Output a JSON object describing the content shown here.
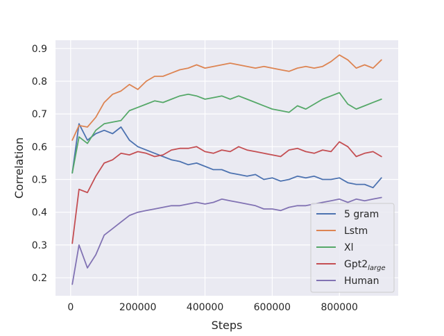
{
  "chart_data": {
    "type": "line",
    "xlabel": "Steps",
    "ylabel": "Correlation",
    "xlim": [
      -45000,
      975000
    ],
    "ylim": [
      0.145,
      0.925
    ],
    "xticks": [
      0,
      200000,
      400000,
      600000,
      800000
    ],
    "xtick_labels": [
      "0",
      "200000",
      "400000",
      "600000",
      "800000"
    ],
    "yticks": [
      0.2,
      0.3,
      0.4,
      0.5,
      0.6,
      0.7,
      0.8,
      0.9
    ],
    "ytick_labels": [
      "0.2",
      "0.3",
      "0.4",
      "0.5",
      "0.6",
      "0.7",
      "0.8",
      "0.9"
    ],
    "grid": true,
    "legend_position": "lower-right",
    "style": {
      "background": "#eaeaf2",
      "grid_color": "#ffffff"
    },
    "series": [
      {
        "name": "5 gram",
        "color": "#4c72b0",
        "x": [
          5000,
          25000,
          50000,
          75000,
          100000,
          125000,
          150000,
          175000,
          200000,
          225000,
          250000,
          275000,
          300000,
          325000,
          350000,
          375000,
          400000,
          425000,
          450000,
          475000,
          500000,
          525000,
          550000,
          575000,
          600000,
          625000,
          650000,
          675000,
          700000,
          725000,
          750000,
          775000,
          800000,
          825000,
          850000,
          875000,
          900000,
          925000
        ],
        "y": [
          0.52,
          0.67,
          0.62,
          0.64,
          0.65,
          0.64,
          0.66,
          0.62,
          0.6,
          0.59,
          0.58,
          0.57,
          0.56,
          0.555,
          0.545,
          0.55,
          0.54,
          0.53,
          0.53,
          0.52,
          0.515,
          0.51,
          0.515,
          0.5,
          0.505,
          0.495,
          0.5,
          0.51,
          0.505,
          0.51,
          0.5,
          0.5,
          0.505,
          0.49,
          0.485,
          0.485,
          0.475,
          0.505
        ]
      },
      {
        "name": "Lstm",
        "color": "#dd8452",
        "x": [
          5000,
          25000,
          50000,
          75000,
          100000,
          125000,
          150000,
          175000,
          200000,
          225000,
          250000,
          275000,
          300000,
          325000,
          350000,
          375000,
          400000,
          425000,
          450000,
          475000,
          500000,
          525000,
          550000,
          575000,
          600000,
          625000,
          650000,
          675000,
          700000,
          725000,
          750000,
          775000,
          800000,
          825000,
          850000,
          875000,
          900000,
          925000
        ],
        "y": [
          0.62,
          0.665,
          0.66,
          0.69,
          0.735,
          0.76,
          0.77,
          0.79,
          0.775,
          0.8,
          0.815,
          0.815,
          0.825,
          0.835,
          0.84,
          0.85,
          0.84,
          0.845,
          0.85,
          0.855,
          0.85,
          0.845,
          0.84,
          0.845,
          0.84,
          0.835,
          0.83,
          0.84,
          0.845,
          0.84,
          0.845,
          0.86,
          0.88,
          0.865,
          0.84,
          0.85,
          0.84,
          0.865
        ]
      },
      {
        "name": "Xl",
        "color": "#55a868",
        "x": [
          5000,
          25000,
          50000,
          75000,
          100000,
          125000,
          150000,
          175000,
          200000,
          225000,
          250000,
          275000,
          300000,
          325000,
          350000,
          375000,
          400000,
          425000,
          450000,
          475000,
          500000,
          525000,
          550000,
          575000,
          600000,
          625000,
          650000,
          675000,
          700000,
          725000,
          750000,
          775000,
          800000,
          825000,
          850000,
          875000,
          900000,
          925000
        ],
        "y": [
          0.52,
          0.63,
          0.61,
          0.65,
          0.67,
          0.675,
          0.68,
          0.71,
          0.72,
          0.73,
          0.74,
          0.735,
          0.745,
          0.755,
          0.76,
          0.755,
          0.745,
          0.75,
          0.755,
          0.745,
          0.755,
          0.745,
          0.735,
          0.725,
          0.715,
          0.71,
          0.705,
          0.725,
          0.715,
          0.73,
          0.745,
          0.755,
          0.765,
          0.73,
          0.715,
          0.725,
          0.735,
          0.745
        ]
      },
      {
        "name": "Gpt2large",
        "label_main": "Gpt2",
        "label_sub": "large",
        "color": "#c44e52",
        "x": [
          5000,
          25000,
          50000,
          75000,
          100000,
          125000,
          150000,
          175000,
          200000,
          225000,
          250000,
          275000,
          300000,
          325000,
          350000,
          375000,
          400000,
          425000,
          450000,
          475000,
          500000,
          525000,
          550000,
          575000,
          600000,
          625000,
          650000,
          675000,
          700000,
          725000,
          750000,
          775000,
          800000,
          825000,
          850000,
          875000,
          900000,
          925000
        ],
        "y": [
          0.305,
          0.47,
          0.46,
          0.51,
          0.55,
          0.56,
          0.58,
          0.575,
          0.585,
          0.58,
          0.57,
          0.575,
          0.59,
          0.595,
          0.595,
          0.6,
          0.585,
          0.58,
          0.59,
          0.585,
          0.6,
          0.59,
          0.585,
          0.58,
          0.575,
          0.57,
          0.59,
          0.595,
          0.585,
          0.58,
          0.59,
          0.585,
          0.615,
          0.6,
          0.57,
          0.58,
          0.585,
          0.57
        ]
      },
      {
        "name": "Human",
        "color": "#8172b3",
        "x": [
          5000,
          25000,
          50000,
          75000,
          100000,
          125000,
          150000,
          175000,
          200000,
          225000,
          250000,
          275000,
          300000,
          325000,
          350000,
          375000,
          400000,
          425000,
          450000,
          475000,
          500000,
          525000,
          550000,
          575000,
          600000,
          625000,
          650000,
          675000,
          700000,
          725000,
          750000,
          775000,
          800000,
          825000,
          850000,
          875000,
          900000,
          925000
        ],
        "y": [
          0.18,
          0.3,
          0.23,
          0.27,
          0.33,
          0.35,
          0.37,
          0.39,
          0.4,
          0.405,
          0.41,
          0.415,
          0.42,
          0.42,
          0.425,
          0.43,
          0.425,
          0.43,
          0.44,
          0.435,
          0.43,
          0.425,
          0.42,
          0.41,
          0.41,
          0.405,
          0.415,
          0.42,
          0.42,
          0.425,
          0.43,
          0.435,
          0.44,
          0.43,
          0.44,
          0.435,
          0.44,
          0.445
        ]
      }
    ]
  }
}
